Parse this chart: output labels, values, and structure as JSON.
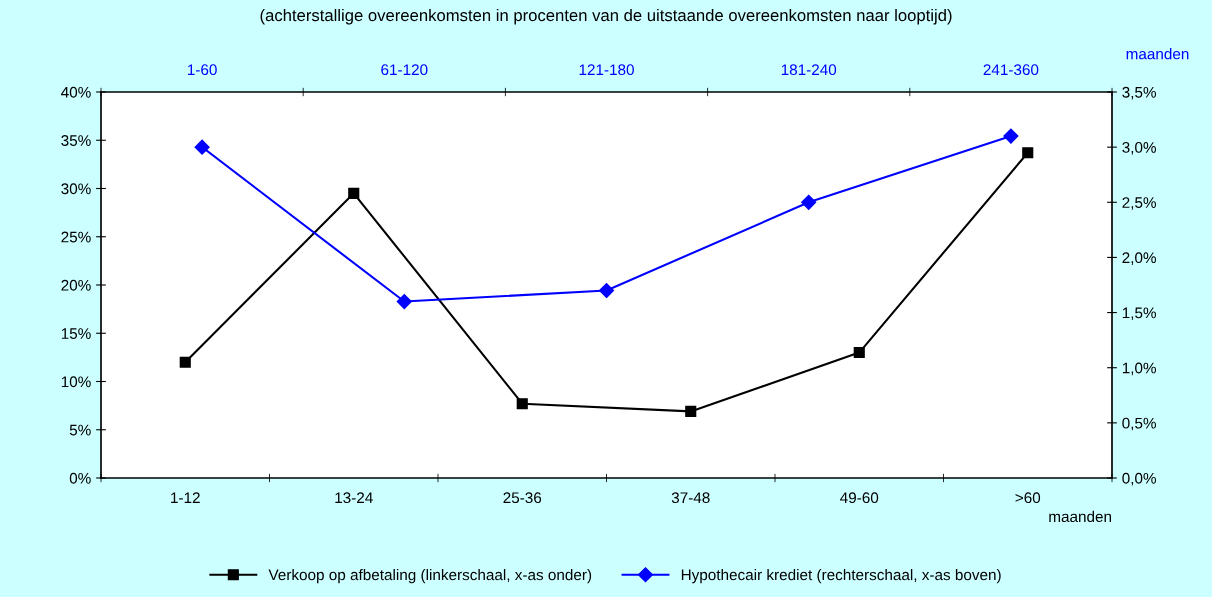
{
  "chart_data": [
    {
      "type": "line",
      "subtitle": "(achterstallige overeenkomsten in procenten van de uitstaande overeenkomsten naar looptijd)",
      "categories": [
        "1-12",
        "13-24",
        "25-36",
        "37-48",
        "49-60",
        ">60"
      ],
      "xlabel": "maanden",
      "series": [
        {
          "name": "Verkoop op afbetaling (linkerschaal, x-as onder)",
          "color": "#000000",
          "values": [
            12.0,
            29.5,
            7.7,
            6.9,
            13.0,
            33.7
          ]
        }
      ],
      "ylim": [
        0,
        40
      ],
      "yticks": [
        {
          "value": 0,
          "label": "0%"
        },
        {
          "value": 5,
          "label": "5%"
        },
        {
          "value": 10,
          "label": "10%"
        },
        {
          "value": 15,
          "label": "15%"
        },
        {
          "value": 20,
          "label": "20%"
        },
        {
          "value": 25,
          "label": "25%"
        },
        {
          "value": 30,
          "label": "30%"
        },
        {
          "value": 35,
          "label": "35%"
        },
        {
          "value": 40,
          "label": "40%"
        }
      ],
      "marker": "square",
      "legend": "bottom",
      "line_style": "solid"
    },
    {
      "type": "line",
      "categories": [
        "1-60",
        "61-120",
        "121-180",
        "181-240",
        "241-360"
      ],
      "x2label": "maanden",
      "series": [
        {
          "name": "Hypothecair krediet (rechterschaal, x-as boven)",
          "color": "#0000ff",
          "axis": "y2",
          "values": [
            3.0,
            1.6,
            1.7,
            2.5,
            3.1
          ]
        }
      ],
      "y2lim": [
        0,
        3.5
      ],
      "y2ticks": [
        {
          "value": 0,
          "label": "0,0%"
        },
        {
          "value": 0.5,
          "label": "0,5%"
        },
        {
          "value": 1,
          "label": "1,0%"
        },
        {
          "value": 1.5,
          "label": "1,5%"
        },
        {
          "value": 2,
          "label": "2,0%"
        },
        {
          "value": 2.5,
          "label": "2,5%"
        },
        {
          "value": 3,
          "label": "3,0%"
        },
        {
          "value": 3.5,
          "label": "3,5%"
        }
      ],
      "marker": "diamond",
      "legend": "bottom",
      "line_style": "solid"
    }
  ]
}
